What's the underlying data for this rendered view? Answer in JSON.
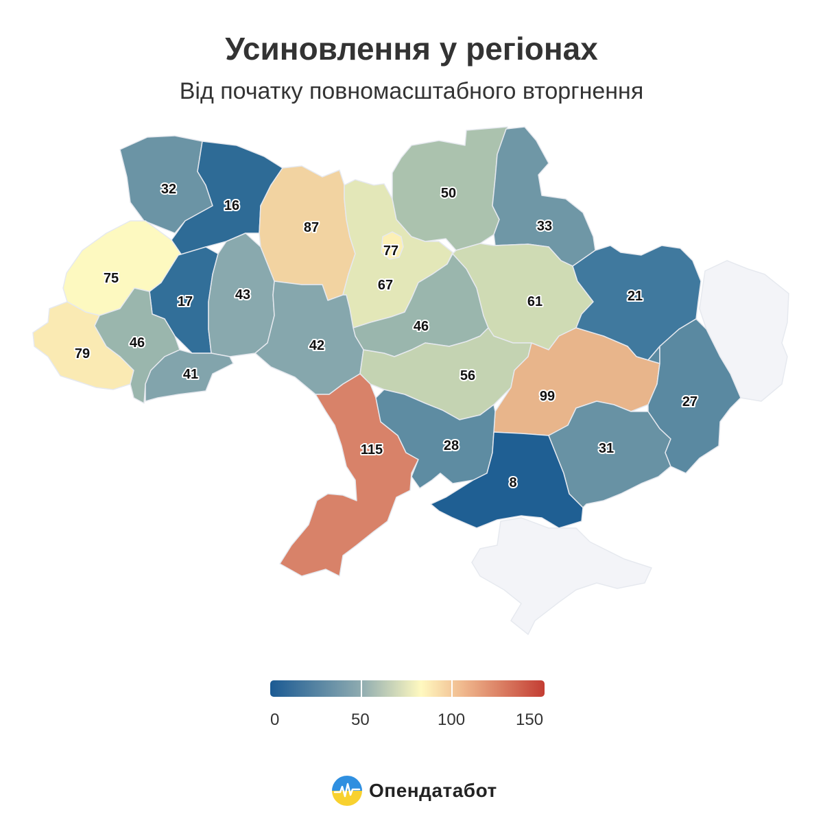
{
  "header": {
    "title": "Усиновлення у регіонах",
    "subtitle": "Від початку повномасштабного вторгнення"
  },
  "map": {
    "no_data_color": "#f3f4f8",
    "regions": [
      {
        "name": "Волинська",
        "value": 32,
        "color": "#6b94a5"
      },
      {
        "name": "Рівненська",
        "value": 16,
        "color": "#2e6b96"
      },
      {
        "name": "Житомирська",
        "value": 87,
        "color": "#f2d3a1"
      },
      {
        "name": "Київська",
        "value": 67,
        "color": "#e3e7b8"
      },
      {
        "name": "Київ",
        "value": 77,
        "color": "#fcf0b6"
      },
      {
        "name": "Чернігівська",
        "value": 50,
        "color": "#abc2ae"
      },
      {
        "name": "Сумська",
        "value": 33,
        "color": "#6f97a6"
      },
      {
        "name": "Львівська",
        "value": 75,
        "color": "#fdf9c0"
      },
      {
        "name": "Тернопільська",
        "value": 17,
        "color": "#326f99"
      },
      {
        "name": "Хмельницька",
        "value": 43,
        "color": "#89a9ae"
      },
      {
        "name": "Черкаська",
        "value": 46,
        "color": "#9ab6ad"
      },
      {
        "name": "Полтавська",
        "value": 61,
        "color": "#cfdbb4"
      },
      {
        "name": "Харківська",
        "value": 21,
        "color": "#40799e"
      },
      {
        "name": "Закарпатська",
        "value": 79,
        "color": "#faeab3"
      },
      {
        "name": "Івано-Франківська",
        "value": 46,
        "color": "#9ab6ad"
      },
      {
        "name": "Чернівецька",
        "value": 41,
        "color": "#82a4ac"
      },
      {
        "name": "Вінницька",
        "value": 42,
        "color": "#86a7ad"
      },
      {
        "name": "Кіровоградська",
        "value": 56,
        "color": "#c4d3b2"
      },
      {
        "name": "Дніпропетровська",
        "value": 99,
        "color": "#e8b58b"
      },
      {
        "name": "Луганська",
        "value": 27,
        "color": "#5a89a1"
      },
      {
        "name": "Одеська",
        "value": 115,
        "color": "#d88269"
      },
      {
        "name": "Миколаївська",
        "value": 28,
        "color": "#5e8ca2"
      },
      {
        "name": "Херсонська",
        "value": 8,
        "color": "#1f5f93"
      },
      {
        "name": "Запорізька",
        "value": 31,
        "color": "#6892a4"
      },
      {
        "name": "Донецька",
        "value": 27,
        "color": "#5a89a1"
      }
    ]
  },
  "legend": {
    "ticks": [
      "0",
      "50",
      "100",
      "150"
    ],
    "colors": [
      "#1b5a93",
      "#8eabb0",
      "#fff9c0",
      "#f0b98e",
      "#c33d33"
    ]
  },
  "brand": {
    "name": "Опендатабот"
  }
}
